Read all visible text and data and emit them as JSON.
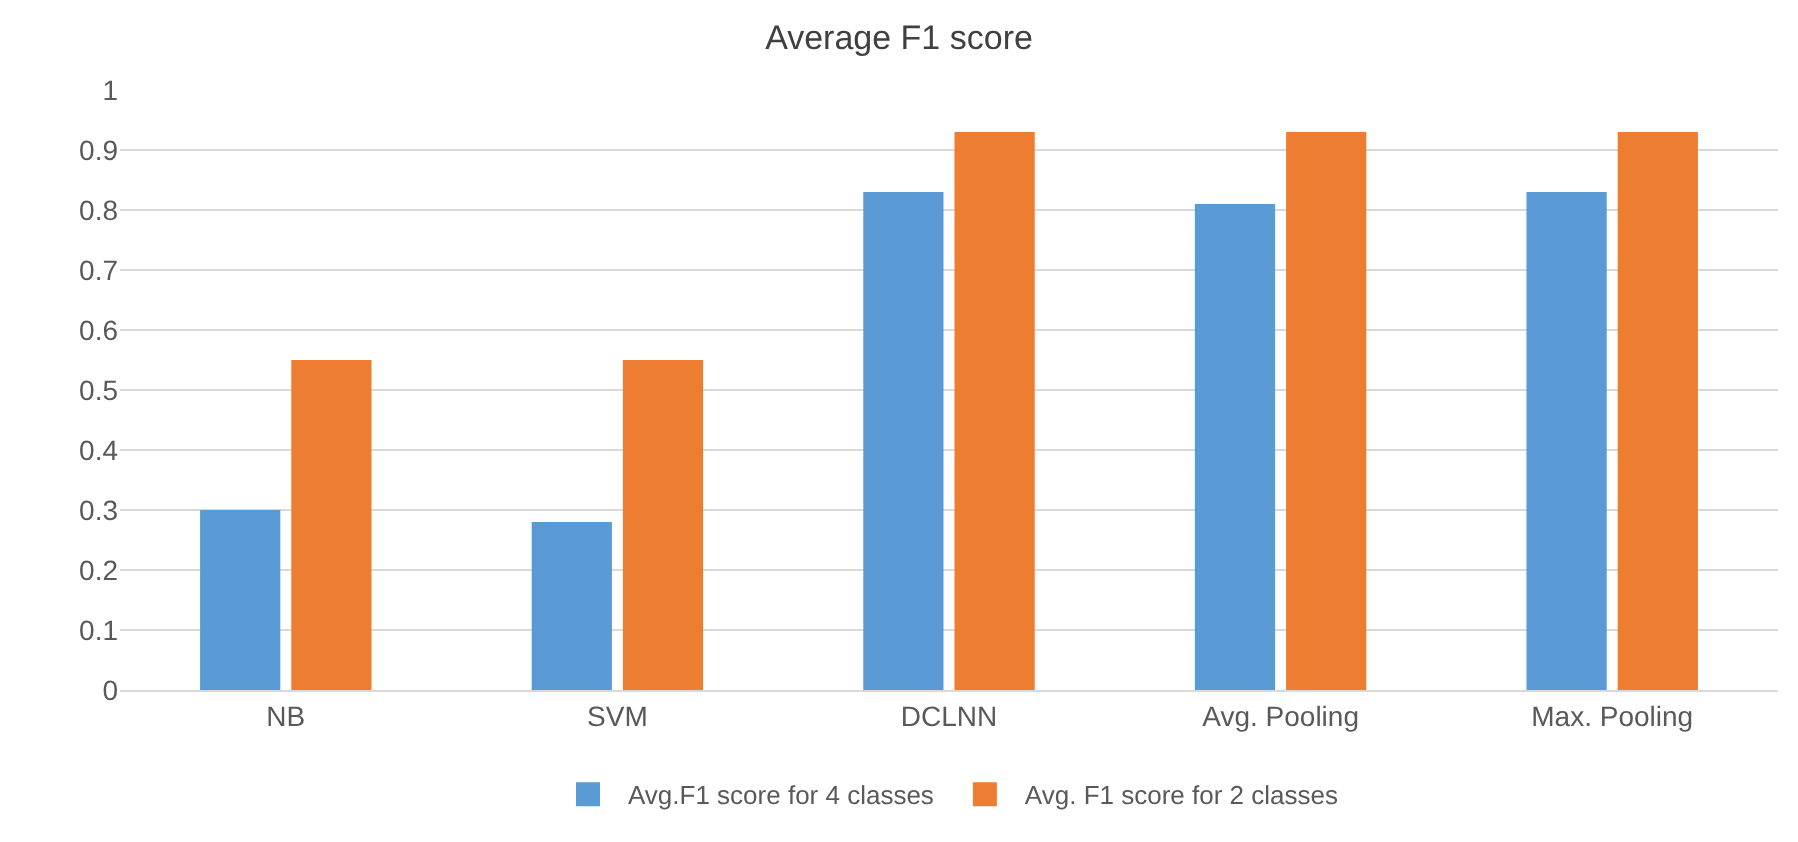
{
  "chart_data": {
    "type": "bar",
    "title": "Average F1 score",
    "categories": [
      "NB",
      "SVM",
      "DCLNN",
      "Avg. Pooling",
      "Max. Pooling"
    ],
    "series": [
      {
        "name": "Avg.F1 score for 4 classes",
        "color": "#5b9bd5",
        "values": [
          0.3,
          0.28,
          0.83,
          0.81,
          0.83
        ]
      },
      {
        "name": "Avg. F1 score for 2 classes",
        "color": "#ed7d31",
        "values": [
          0.55,
          0.55,
          0.93,
          0.93,
          0.93
        ]
      }
    ],
    "ylim": [
      0,
      1
    ],
    "yticks": [
      0,
      0.1,
      0.2,
      0.3,
      0.4,
      0.5,
      0.6,
      0.7,
      0.8,
      0.9,
      1
    ],
    "grid": "y",
    "legend": "bottom"
  }
}
